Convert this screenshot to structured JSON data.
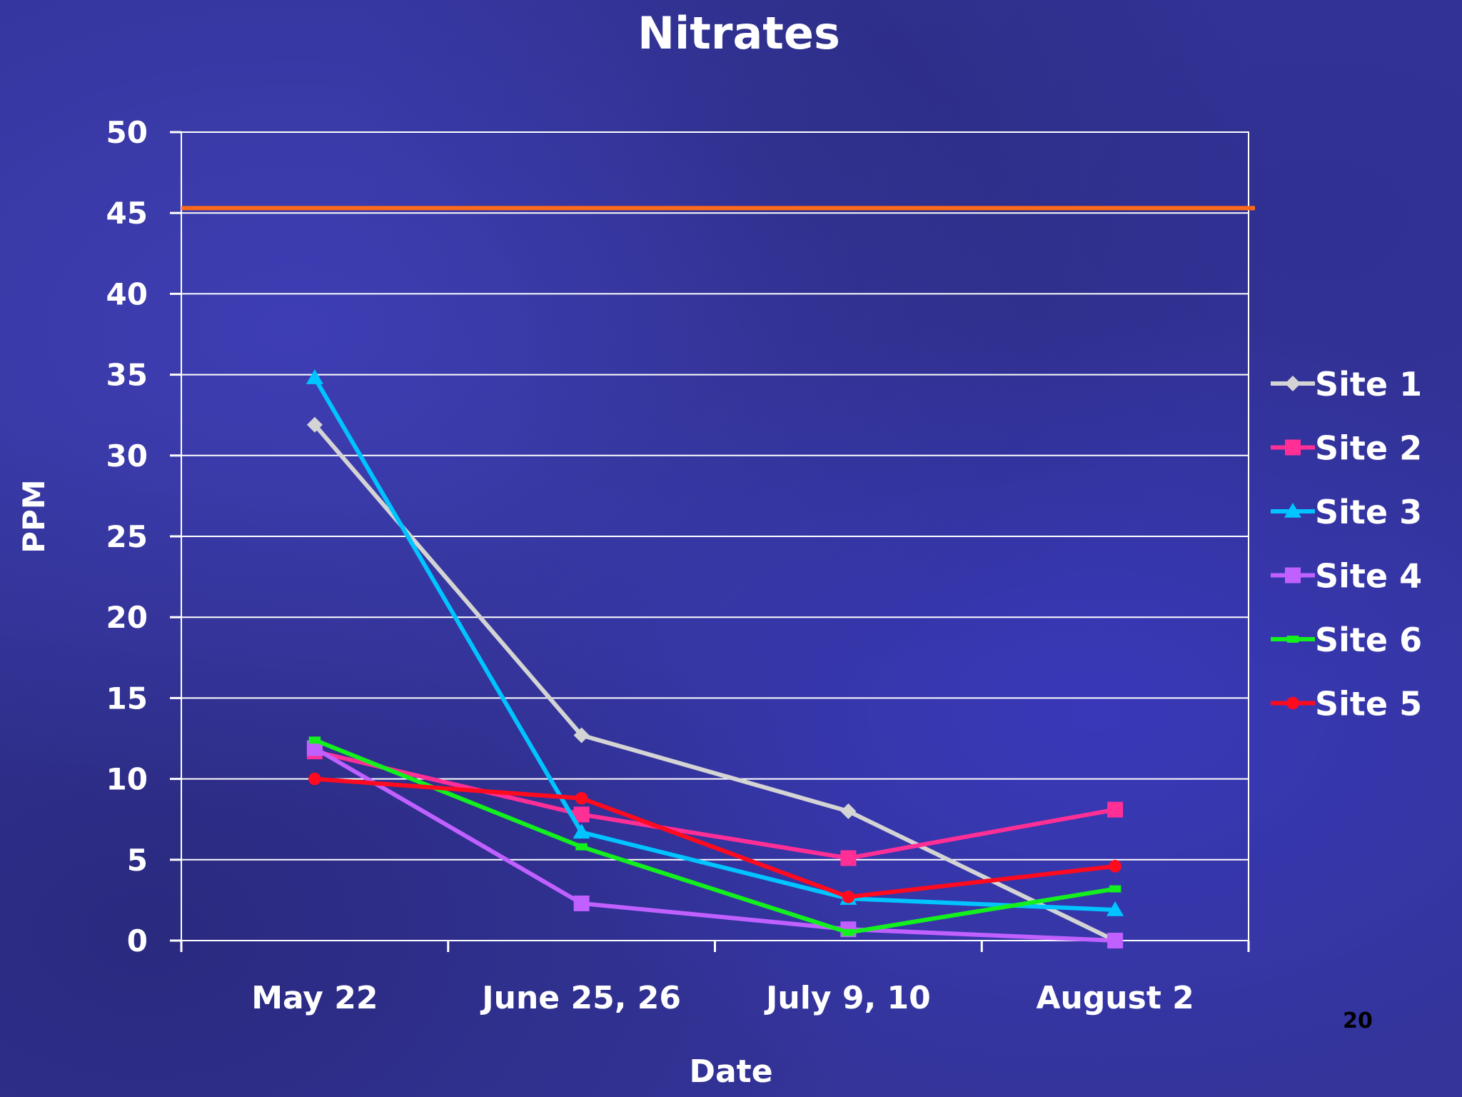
{
  "chart_data": {
    "type": "line",
    "title": "Nitrates",
    "xlabel": "Date",
    "ylabel": "PPM",
    "categories": [
      "May 22",
      "June 25, 26",
      "July 9, 10",
      "August 2"
    ],
    "ylim": [
      0,
      50
    ],
    "yticks": [
      "0",
      "5",
      "10",
      "15",
      "20",
      "25",
      "30",
      "35",
      "40",
      "45",
      "50"
    ],
    "grid": true,
    "legend_position": "right",
    "reference_line": {
      "value": 45.3,
      "color": "#ff6a1a"
    },
    "series": [
      {
        "name": "Site 1",
        "color": "#d4d4d4",
        "marker": "diamond",
        "values": [
          31.9,
          12.7,
          8.0,
          0.0
        ]
      },
      {
        "name": "Site 2",
        "color": "#ff2f96",
        "marker": "square",
        "values": [
          11.7,
          7.8,
          5.1,
          8.1
        ]
      },
      {
        "name": "Site 3",
        "color": "#00c4ff",
        "marker": "triangle",
        "values": [
          34.8,
          6.7,
          2.6,
          1.9
        ]
      },
      {
        "name": "Site 4",
        "color": "#c060ff",
        "marker": "square",
        "values": [
          11.9,
          2.3,
          0.7,
          0.0
        ]
      },
      {
        "name": "Site 6",
        "color": "#14f01e",
        "marker": "dash",
        "values": [
          12.4,
          5.8,
          0.5,
          3.2
        ]
      },
      {
        "name": "Site 5",
        "color": "#ff0a1e",
        "marker": "circle",
        "values": [
          10.0,
          8.8,
          2.7,
          4.6
        ]
      }
    ]
  },
  "page_number": "20"
}
